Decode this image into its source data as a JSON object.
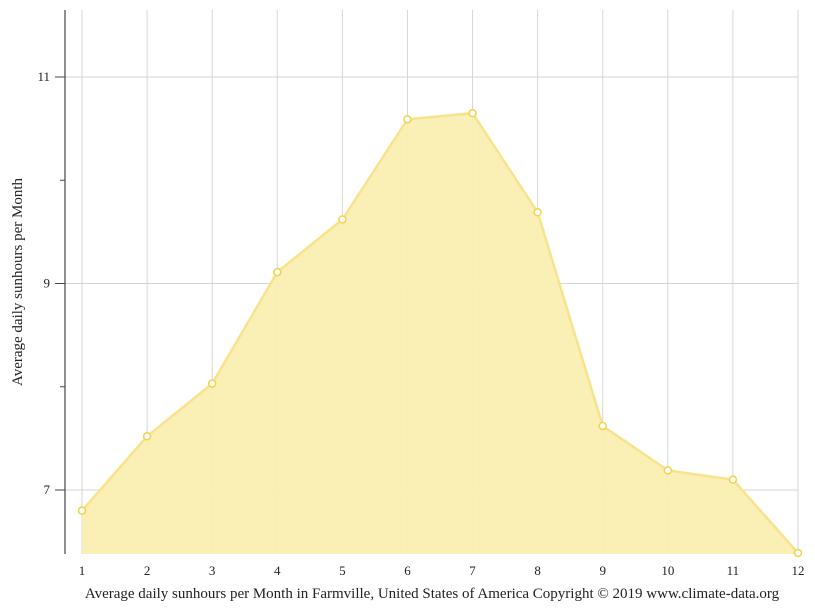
{
  "chart_data": {
    "type": "area",
    "title": "",
    "caption": "Average daily sunhours per Month in Farmville, United States of America Copyright © 2019 www.climate-data.org",
    "xlabel": "",
    "ylabel": "Average daily sunhours per Month",
    "categories": [
      "1",
      "2",
      "3",
      "4",
      "5",
      "6",
      "7",
      "8",
      "9",
      "10",
      "11",
      "12"
    ],
    "series": [
      {
        "name": "Average daily sunhours",
        "values": [
          6.8,
          7.52,
          8.03,
          9.11,
          9.62,
          10.59,
          10.65,
          9.69,
          7.62,
          7.19,
          7.1,
          6.39
        ]
      }
    ],
    "yticks_major": [
      7,
      9,
      11
    ],
    "yticks_minor": [
      8,
      10
    ],
    "ylim": [
      6.39,
      11.65
    ],
    "grid": true,
    "legend": "none",
    "colors": {
      "fill": "#faeeb0",
      "line": "#f8e38c",
      "marker_stroke": "#f3d34a",
      "marker_fill": "#ffffff",
      "grid": "#d6d6d6",
      "axis": "#444444"
    }
  }
}
